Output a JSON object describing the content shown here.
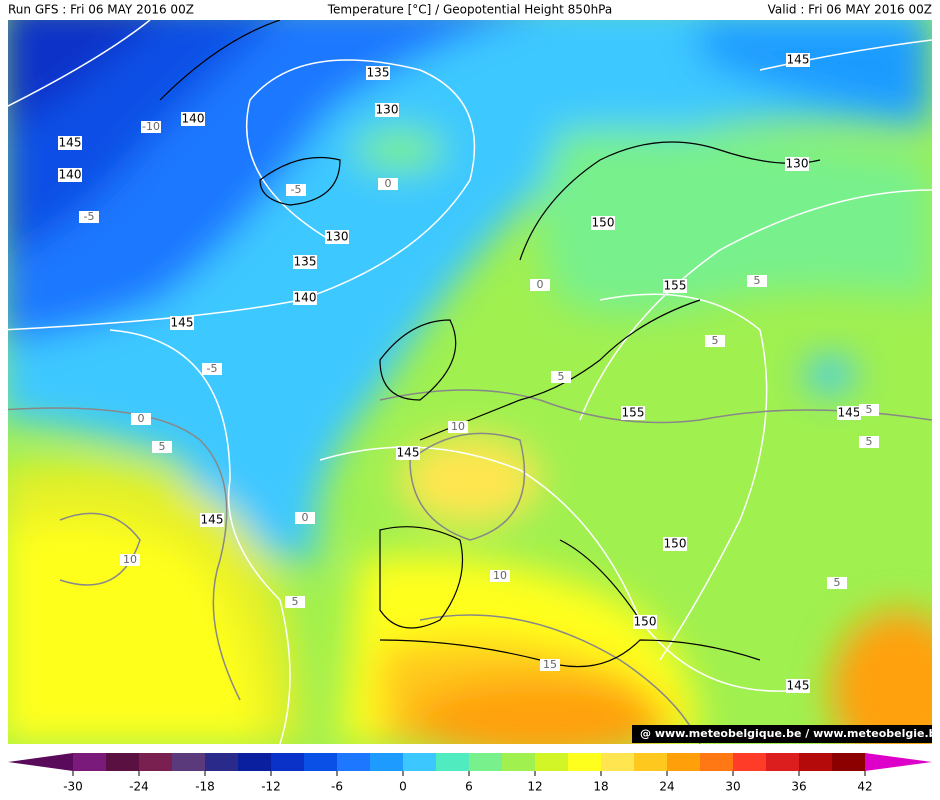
{
  "header": {
    "left": "Run GFS : Fri 06 MAY 2016 00Z",
    "center": "Temperature [°C] / Geopotential Height 850hPa",
    "right": "Valid : Fri 06 MAY 2016 00Z"
  },
  "map": {
    "height_labels": [
      135,
      130,
      140,
      145,
      140,
      130,
      135,
      140,
      145,
      145,
      130,
      150,
      155,
      155,
      145,
      145,
      145,
      150,
      150,
      145
    ],
    "temperature_labels": [
      -10,
      -5,
      -5,
      0,
      0,
      -5,
      0,
      5,
      10,
      0,
      10,
      5,
      10,
      15,
      5,
      5,
      5,
      5,
      5,
      5
    ],
    "credit": "@ www.meteobelgique.be / www.meteobelgie.be"
  },
  "colorbar": {
    "ticks": [
      -30,
      -24,
      -18,
      -12,
      -6,
      0,
      6,
      12,
      18,
      24,
      30,
      36,
      42
    ],
    "colors": [
      "#5a0a5a",
      "#7a1a7a",
      "#5a1040",
      "#7a2050",
      "#5a3a7a",
      "#2a2a8a",
      "#0a1ea0",
      "#0a32c8",
      "#0a50e6",
      "#1e78ff",
      "#1e9bff",
      "#3cc8ff",
      "#50ebbe",
      "#78f08c",
      "#a0f050",
      "#d2f528",
      "#ffff1e",
      "#ffe650",
      "#ffc81e",
      "#ffa00a",
      "#ff7814",
      "#ff3c28",
      "#dc1e1e",
      "#b40a0a",
      "#8c0000",
      "#dc00c8"
    ]
  }
}
